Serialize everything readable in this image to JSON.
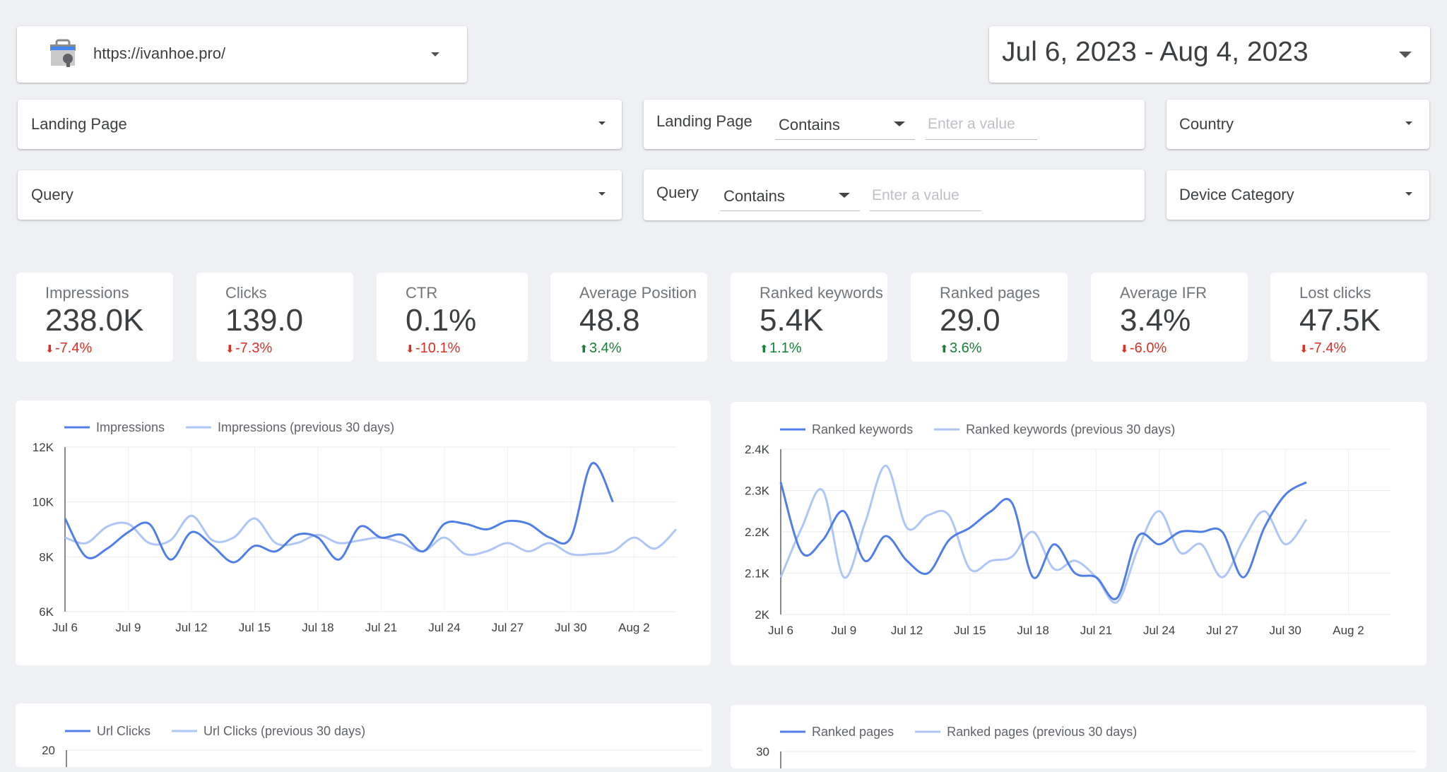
{
  "header": {
    "site_url": "https://ivanhoe.pro/",
    "date_range": "Jul 6, 2023 - Aug 4, 2023"
  },
  "filters": {
    "landing_page_select": "Landing Page",
    "query_select": "Query",
    "landing_page_label": "Landing Page",
    "landing_page_operator": "Contains",
    "landing_page_placeholder": "Enter a value",
    "query_label": "Query",
    "query_operator": "Contains",
    "query_placeholder": "Enter a value",
    "country_select": "Country",
    "device_select": "Device Category"
  },
  "kpis": [
    {
      "title": "Impressions",
      "value": "238.0K",
      "delta": "-7.4%",
      "dir": "down"
    },
    {
      "title": "Clicks",
      "value": "139.0",
      "delta": "-7.3%",
      "dir": "down"
    },
    {
      "title": "CTR",
      "value": "0.1%",
      "delta": "-10.1%",
      "dir": "down"
    },
    {
      "title": "Average Position",
      "value": "48.8",
      "delta": "3.4%",
      "dir": "up"
    },
    {
      "title": "Ranked keywords",
      "value": "5.4K",
      "delta": "1.1%",
      "dir": "up"
    },
    {
      "title": "Ranked pages",
      "value": "29.0",
      "delta": "3.6%",
      "dir": "up"
    },
    {
      "title": "Average IFR",
      "value": "3.4%",
      "delta": "-6.0%",
      "dir": "down"
    },
    {
      "title": "Lost clicks",
      "value": "47.5K",
      "delta": "-7.4%",
      "dir": "down"
    }
  ],
  "colors": {
    "current_series": "#4f7fe6",
    "previous_series": "#adc6f6",
    "negative": "#d93025",
    "positive": "#188038"
  },
  "icons": {
    "site_icon": "search-console-toolbox-icon",
    "dropdown": "caret-down-icon",
    "delta_down": "arrow-down-icon",
    "delta_up": "arrow-up-icon"
  },
  "chart_data": [
    {
      "type": "line",
      "legend": [
        "Impressions",
        "Impressions (previous 30 days)"
      ],
      "x": [
        "Jul 6",
        "Jul 7",
        "Jul 8",
        "Jul 9",
        "Jul 10",
        "Jul 11",
        "Jul 12",
        "Jul 13",
        "Jul 14",
        "Jul 15",
        "Jul 16",
        "Jul 17",
        "Jul 18",
        "Jul 19",
        "Jul 20",
        "Jul 21",
        "Jul 22",
        "Jul 23",
        "Jul 24",
        "Jul 25",
        "Jul 26",
        "Jul 27",
        "Jul 28",
        "Jul 29",
        "Jul 30",
        "Jul 31",
        "Aug 1",
        "Aug 2",
        "Aug 3",
        "Aug 4"
      ],
      "x_ticks": [
        "Jul 6",
        "Jul 9",
        "Jul 12",
        "Jul 15",
        "Jul 18",
        "Jul 21",
        "Jul 24",
        "Jul 27",
        "Jul 30",
        "Aug 2"
      ],
      "y_ticks": [
        "6K",
        "8K",
        "10K",
        "12K"
      ],
      "ylim": [
        6000,
        12000
      ],
      "legend_position": "top-left",
      "grid": true,
      "series": [
        {
          "name": "Impressions",
          "values": [
            9400,
            8000,
            8300,
            8900,
            9200,
            7900,
            8900,
            8400,
            7800,
            8400,
            8200,
            8800,
            8700,
            7900,
            9100,
            8700,
            8800,
            8200,
            9200,
            9200,
            9000,
            9300,
            9200,
            8700,
            8700,
            11400,
            10000,
            null,
            null,
            null
          ]
        },
        {
          "name": "Impressions (previous 30 days)",
          "values": [
            8700,
            8500,
            9100,
            9200,
            8500,
            8600,
            9500,
            8600,
            8700,
            9400,
            8500,
            8500,
            8800,
            8500,
            8600,
            8700,
            8500,
            8200,
            8700,
            8100,
            8200,
            8500,
            8200,
            8500,
            8100,
            8100,
            8200,
            8700,
            8300,
            9000
          ]
        }
      ]
    },
    {
      "type": "line",
      "legend": [
        "Ranked keywords",
        "Ranked keywords (previous 30 days)"
      ],
      "x": [
        "Jul 6",
        "Jul 7",
        "Jul 8",
        "Jul 9",
        "Jul 10",
        "Jul 11",
        "Jul 12",
        "Jul 13",
        "Jul 14",
        "Jul 15",
        "Jul 16",
        "Jul 17",
        "Jul 18",
        "Jul 19",
        "Jul 20",
        "Jul 21",
        "Jul 22",
        "Jul 23",
        "Jul 24",
        "Jul 25",
        "Jul 26",
        "Jul 27",
        "Jul 28",
        "Jul 29",
        "Jul 30",
        "Jul 31",
        "Aug 1",
        "Aug 2",
        "Aug 3",
        "Aug 4"
      ],
      "x_ticks": [
        "Jul 6",
        "Jul 9",
        "Jul 12",
        "Jul 15",
        "Jul 18",
        "Jul 21",
        "Jul 24",
        "Jul 27",
        "Jul 30",
        "Aug 2"
      ],
      "y_ticks": [
        "2K",
        "2.1K",
        "2.2K",
        "2.3K",
        "2.4K"
      ],
      "ylim": [
        2000,
        2400
      ],
      "legend_position": "top-left",
      "grid": true,
      "series": [
        {
          "name": "Ranked keywords",
          "values": [
            2320,
            2150,
            2180,
            2250,
            2130,
            2190,
            2130,
            2100,
            2180,
            2210,
            2250,
            2270,
            2090,
            2170,
            2100,
            2090,
            2040,
            2190,
            2170,
            2200,
            2200,
            2200,
            2090,
            2210,
            2290,
            2320,
            null,
            null,
            null,
            null
          ]
        },
        {
          "name": "Ranked keywords (previous 30 days)",
          "values": [
            2090,
            2210,
            2300,
            2090,
            2220,
            2360,
            2210,
            2240,
            2240,
            2110,
            2130,
            2140,
            2200,
            2110,
            2130,
            2090,
            2030,
            2160,
            2250,
            2150,
            2170,
            2090,
            2180,
            2250,
            2170,
            2230,
            null,
            null,
            null,
            null
          ]
        }
      ]
    },
    {
      "type": "line",
      "legend": [
        "Url Clicks",
        "Url Clicks (previous 30 days)"
      ],
      "y_ticks": [
        "20"
      ],
      "legend_position": "top-left",
      "series": [
        {
          "name": "Url Clicks",
          "values": []
        },
        {
          "name": "Url Clicks (previous 30 days)",
          "values": []
        }
      ]
    },
    {
      "type": "line",
      "legend": [
        "Ranked pages",
        "Ranked pages (previous 30 days)"
      ],
      "y_ticks": [
        "30"
      ],
      "legend_position": "top-left",
      "series": [
        {
          "name": "Ranked pages",
          "values": []
        },
        {
          "name": "Ranked pages (previous 30 days)",
          "values": []
        }
      ]
    }
  ]
}
